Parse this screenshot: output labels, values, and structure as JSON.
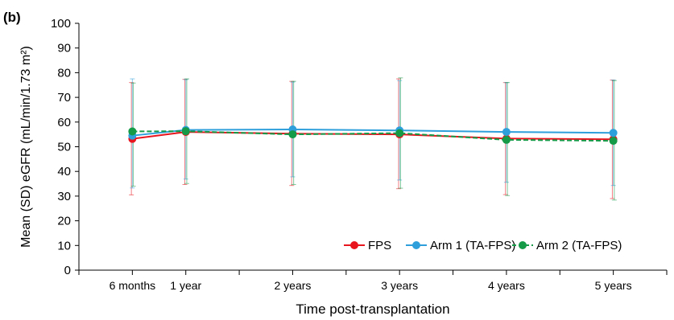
{
  "panel_label": "(b)",
  "chart_data": {
    "type": "line",
    "title": "",
    "xlabel": "Time post-transplantation",
    "ylabel": "Mean (SD) eGFR (mL/min/1.73 m²)",
    "ylim": [
      0,
      100
    ],
    "yticks": [
      0,
      10,
      20,
      30,
      40,
      50,
      60,
      70,
      80,
      90,
      100
    ],
    "x": [
      0.5,
      1,
      2,
      3,
      4,
      5
    ],
    "categories": [
      "6 months",
      "1 year",
      "2 years",
      "3 years",
      "4 years",
      "5 years"
    ],
    "xlim": [
      0,
      5.5
    ],
    "grid": false,
    "legend_position": "bottom-right",
    "error_bars": "SD",
    "series": [
      {
        "name": "FPS",
        "color": "#e8141e",
        "dashed": false,
        "values": [
          53.2,
          56.0,
          55.3,
          55.0,
          53.3,
          53.0
        ],
        "upper": [
          76.0,
          77.3,
          76.5,
          77.5,
          76.0,
          77.0
        ],
        "lower": [
          30.5,
          34.7,
          34.3,
          33.0,
          30.6,
          29.0
        ]
      },
      {
        "name": "Arm 1 (TA-FPS)",
        "color": "#2e9fdb",
        "dashed": false,
        "values": [
          54.5,
          56.8,
          57.0,
          56.6,
          56.0,
          55.6
        ],
        "upper": [
          77.5,
          77.2,
          76.2,
          76.8,
          76.0,
          77.0
        ],
        "lower": [
          33.3,
          36.9,
          37.8,
          36.5,
          35.6,
          34.3
        ]
      },
      {
        "name": "Arm 2 (TA-FPS)",
        "color": "#159a48",
        "dashed": true,
        "values": [
          56.2,
          56.3,
          55.0,
          55.5,
          52.8,
          52.4
        ],
        "upper": [
          75.8,
          77.5,
          76.5,
          77.9,
          76.0,
          76.8
        ],
        "lower": [
          34.0,
          35.1,
          34.7,
          33.2,
          30.2,
          28.4
        ]
      }
    ]
  }
}
